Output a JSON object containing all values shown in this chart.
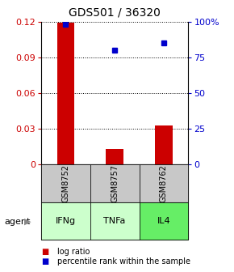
{
  "title": "GDS501 / 36320",
  "categories": [
    "GSM8752",
    "GSM8757",
    "GSM8762"
  ],
  "agents": [
    "IFNg",
    "TNFa",
    "IL4"
  ],
  "log_ratios": [
    0.119,
    0.013,
    0.033
  ],
  "percentiles": [
    98.0,
    80.0,
    85.0
  ],
  "ylim_left": [
    0,
    0.12
  ],
  "ylim_right": [
    0,
    100
  ],
  "yticks_left": [
    0,
    0.03,
    0.06,
    0.09,
    0.12
  ],
  "ytick_labels_left": [
    "0",
    "0.03",
    "0.06",
    "0.09",
    "0.12"
  ],
  "yticks_right": [
    0,
    25,
    50,
    75,
    100
  ],
  "ytick_labels_right": [
    "0",
    "25",
    "50",
    "75",
    "100%"
  ],
  "bar_color": "#cc0000",
  "dot_color": "#0000cc",
  "bar_width": 0.35,
  "gray_box_color": "#c8c8c8",
  "green_box_colors": [
    "#ccffcc",
    "#ccffcc",
    "#66ee66"
  ],
  "legend_bar_label": "log ratio",
  "legend_dot_label": "percentile rank within the sample",
  "title_fontsize": 10,
  "axis_fontsize": 8,
  "agent_label": "agent",
  "background_color": "#ffffff"
}
